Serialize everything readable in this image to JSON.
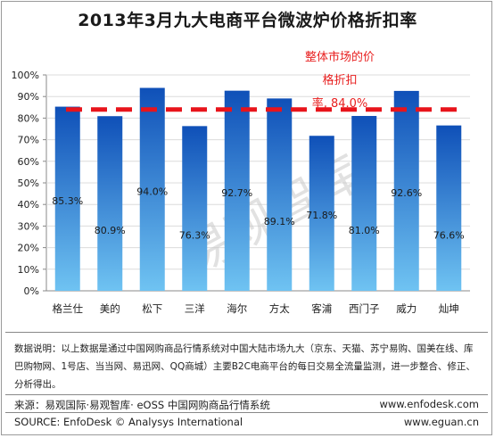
{
  "chart_data": {
    "type": "bar",
    "title": "2013年3月九大电商平台微波炉价格折扣率",
    "categories": [
      "格兰仕",
      "美的",
      "松下",
      "三洋",
      "海尔",
      "方太",
      "客浦",
      "西门子",
      "威力",
      "灿坤"
    ],
    "values": [
      85.3,
      80.9,
      94.0,
      76.3,
      92.7,
      89.1,
      71.8,
      81.0,
      92.6,
      76.6
    ],
    "value_labels": [
      "85.3%",
      "80.9%",
      "94.0%",
      "76.3%",
      "92.7%",
      "89.1%",
      "71.8%",
      "81.0%",
      "92.6%",
      "76.6%"
    ],
    "ylim": [
      0,
      100
    ],
    "yticks": [
      "0%",
      "10%",
      "20%",
      "30%",
      "40%",
      "50%",
      "60%",
      "70%",
      "80%",
      "90%",
      "100%"
    ],
    "reference_line": {
      "value": 84.0,
      "label_lines": [
        "整体市场的价",
        "格折扣",
        "率, 84.0%"
      ]
    },
    "grid": true,
    "colors": {
      "bar_top": "#0f50b8",
      "bar_bottom": "#6fc3f2",
      "reference": "#e8141b"
    }
  },
  "watermark": "易观智库",
  "note": "数据说明：以上数据是通过中国网购商品行情系统对中国大陆市场九大（京东、天猫、苏宁易购、国美在线、库巴购物网、1号店、当当网、易迅网、QQ商城）主要B2C电商平台的每日交易全流量监测，进一步整合、修正、分析得出。",
  "footer": {
    "source_cn": "来源：易观国际·易观智库· eOSS 中国网购商品行情系统",
    "site1": "www.enfodesk.com",
    "source_en": "SOURCE: EnfoDesk © Analysys International",
    "site2": "www.eguan.cn"
  }
}
